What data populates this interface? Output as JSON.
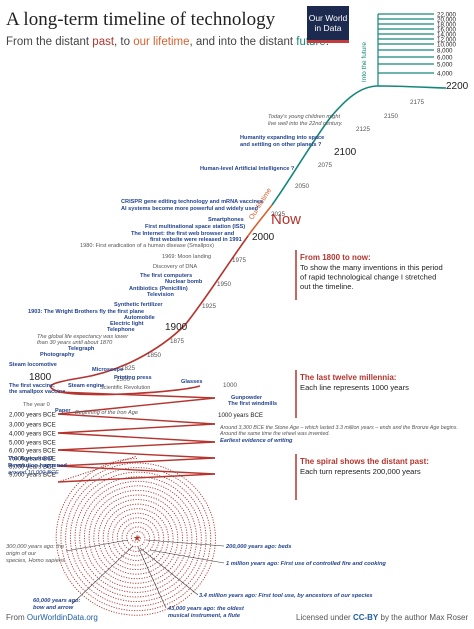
{
  "header": {
    "title": "A long-term timeline of technology",
    "subtitle_prefix": "From the distant ",
    "subtitle_past": "past",
    "subtitle_mid": ", to ",
    "subtitle_life": "our lifetime",
    "subtitle_mid2": ", and into the distant ",
    "subtitle_future": "future",
    "subtitle_end": ".",
    "logo_line1": "Our World",
    "logo_line2": "in Data"
  },
  "footer": {
    "source_prefix": "From ",
    "source_link": "OurWorldinData.org",
    "license_prefix": "Licensed under ",
    "license_link": "CC-BY",
    "license_suffix": " by the author Max Roser"
  },
  "colors": {
    "past_red": "#b5342e",
    "lifetime_orange": "#d9612f",
    "future_teal": "#15867a",
    "event_blue": "#23438f"
  },
  "chart_data": {
    "type": "timeline",
    "future_label": "Into the future",
    "future_years": [
      22000,
      20000,
      18000,
      16000,
      14000,
      12000,
      10000,
      8000,
      6000,
      5000,
      4000
    ],
    "year_labels_large": [
      "2200",
      "2100",
      "2000",
      "1900",
      "1800"
    ],
    "year_labels_small": [
      "2175",
      "2150",
      "2125",
      "2075",
      "2050",
      "2025",
      "1975",
      "1950",
      "1925",
      "1875",
      "1850",
      "1825",
      "1500",
      "1000"
    ],
    "now_label": "Now",
    "lifetime_label": "Our lifetime",
    "events": [
      "Today's young children might",
      "live well into the 22nd century.",
      "Humanity expanding into space",
      "and settling on other planets ?",
      "Human-level Artificial Intelligence ?",
      "CRISPR gene editing technology and mRNA vaccines",
      "AI systems become more powerful and widely used",
      "Smartphones",
      "First multinational space station (ISS)",
      "The Internet: the first web browser and",
      "first website were released in 1991",
      "1980: First eradication of a human disease (Smallpox)",
      "1969: Moon landing",
      "Discovery of DNA",
      "The first computers",
      "Nuclear bomb",
      "Antibiotics (Penicillin)",
      "Television",
      "Synthetic fertilizer",
      "1903: The Wright Brothers fly the first plane",
      "Automobile",
      "Electric light",
      "Telephone",
      "The global life expectancy was lower",
      "than 30 years until about 1870",
      "Telegraph",
      "Photography",
      "Steam locomotive",
      "Microscope",
      "Printing press",
      "Glasses",
      "Scientific Revolution",
      "Gunpowder",
      "The first windmills",
      "The first vaccine,",
      "the smallpox vaccine",
      "Steam engine",
      "Paper",
      "The year 0",
      "Beginning of the Iron Age",
      "Around 3,300 BCE the Stone Age – which lasted 3.3 million years – ends and the Bronze Age begins.",
      "Around the same time the wheel was invented.",
      "Earliest evidence of writing",
      "The Agricultural",
      "Revolution happened",
      "around 10,000 BCE",
      "300,000 years ago: the",
      "origin of our",
      "species, Homo sapiens",
      "200,000 years ago: beds",
      "1 million years ago: First use of controlled fire and cooking",
      "3.4 million years ago: First tool use, by ancestors of our species",
      "60,000 years ago:",
      "bow and arrow",
      "43,000 years ago: the oldest",
      "musical instrument, a flute"
    ],
    "millennia_labels": [
      "1000 years BCE",
      "2,000 years BCE",
      "3,000 years BCE",
      "4,000 years BCE",
      "5,000 years BCE",
      "6,000 years BCE",
      "7,000 years BCE",
      "8,000 years BCE",
      "9,000 years BCE"
    ],
    "notes": [
      {
        "head": "From 1800 to now:",
        "body": [
          "To show the many inventions in this period",
          "of rapid technological change I stretched",
          "out the timeline."
        ]
      },
      {
        "head": "The last twelve millennia:",
        "body": [
          "Each line represents 1000 years"
        ]
      },
      {
        "head": "The spiral shows the distant past:",
        "body": [
          "Each turn represents 200,000 years"
        ]
      }
    ]
  }
}
